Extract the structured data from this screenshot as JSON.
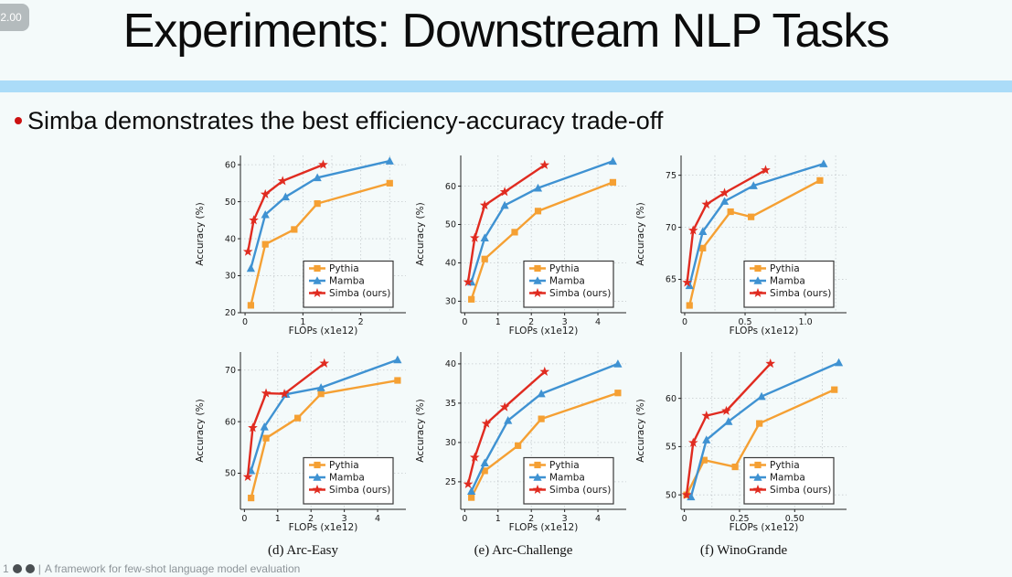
{
  "overlay": {
    "badge": "2.00"
  },
  "slide": {
    "title": "Experiments: Downstream NLP Tasks",
    "bullet": "Simba demonstrates the best efficiency-accuracy trade-off",
    "accent_bar_color": "#ABDCF8",
    "background_color": "#F4FAFA",
    "bullet_dot_color": "#CC1111"
  },
  "footer": {
    "count": "1",
    "separator": "|",
    "text": "A framework for few-shot language model evaluation"
  },
  "colors": {
    "pythia": "#F5A033",
    "mamba": "#3F92D2",
    "simba": "#E02B20"
  },
  "chart_data": [
    {
      "id": "top-left",
      "type": "line",
      "caption": "",
      "xlabel": "FLOPs (x1e12)",
      "ylabel": "Accuracy (%)",
      "xlim": [
        -0.08,
        2.78
      ],
      "ylim": [
        20,
        62.5
      ],
      "xticks": [
        0,
        1,
        2
      ],
      "xtick_labels": [
        "0",
        "1",
        "2"
      ],
      "yticks": [
        20,
        30,
        40,
        50,
        60
      ],
      "xgrid": [
        0.5,
        1,
        1.5,
        2,
        2.5
      ],
      "grid": true,
      "legend_position": "lower right",
      "series": [
        {
          "name": "Pythia",
          "color": "#F5A033",
          "marker": "square",
          "points": [
            [
              0.1,
              22
            ],
            [
              0.35,
              38.5
            ],
            [
              0.85,
              42.5
            ],
            [
              1.25,
              49.5
            ],
            [
              2.5,
              55
            ]
          ]
        },
        {
          "name": "Mamba",
          "color": "#3F92D2",
          "marker": "triangle",
          "points": [
            [
              0.1,
              32
            ],
            [
              0.35,
              46.5
            ],
            [
              0.7,
              51.3
            ],
            [
              1.25,
              56.5
            ],
            [
              2.5,
              61
            ]
          ]
        },
        {
          "name": "Simba (ours)",
          "color": "#E02B20",
          "marker": "star",
          "points": [
            [
              0.05,
              36.5
            ],
            [
              0.15,
              45
            ],
            [
              0.35,
              52
            ],
            [
              0.65,
              55.6
            ],
            [
              1.35,
              60
            ]
          ]
        }
      ]
    },
    {
      "id": "top-middle",
      "type": "line",
      "caption": "",
      "xlabel": "FLOPs (x1e12)",
      "ylabel": "Accuracy (%)",
      "xlim": [
        -0.12,
        4.85
      ],
      "ylim": [
        27,
        68
      ],
      "xticks": [
        0,
        1,
        2,
        3,
        4
      ],
      "xtick_labels": [
        "0",
        "1",
        "2",
        "3",
        "4"
      ],
      "yticks": [
        30,
        40,
        50,
        60
      ],
      "xgrid": [
        1,
        2,
        3,
        4
      ],
      "grid": true,
      "legend_position": "lower right",
      "series": [
        {
          "name": "Pythia",
          "color": "#F5A033",
          "marker": "square",
          "points": [
            [
              0.2,
              30.5
            ],
            [
              0.6,
              41
            ],
            [
              1.5,
              48
            ],
            [
              2.2,
              53.5
            ],
            [
              4.45,
              61
            ]
          ]
        },
        {
          "name": "Mamba",
          "color": "#3F92D2",
          "marker": "triangle",
          "points": [
            [
              0.2,
              35
            ],
            [
              0.6,
              46.5
            ],
            [
              1.2,
              55
            ],
            [
              2.2,
              59.5
            ],
            [
              4.45,
              66.5
            ]
          ]
        },
        {
          "name": "Simba (ours)",
          "color": "#E02B20",
          "marker": "star",
          "points": [
            [
              0.1,
              35
            ],
            [
              0.3,
              46.5
            ],
            [
              0.6,
              55
            ],
            [
              1.2,
              58.5
            ],
            [
              2.4,
              65.5
            ]
          ]
        }
      ]
    },
    {
      "id": "top-right",
      "type": "line",
      "caption": "",
      "xlabel": "FLOPs (x1e12)",
      "ylabel": "Accuracy (%)",
      "xlim": [
        -0.03,
        1.34
      ],
      "ylim": [
        61.8,
        76.9
      ],
      "xticks": [
        0,
        0.5,
        1.0
      ],
      "xtick_labels": [
        "0",
        "0.5",
        "1.0"
      ],
      "yticks": [
        65,
        70,
        75
      ],
      "xgrid": [
        0.25,
        0.5,
        0.75,
        1.0,
        1.25
      ],
      "grid": true,
      "legend_position": "lower right",
      "series": [
        {
          "name": "Pythia",
          "color": "#F5A033",
          "marker": "square",
          "points": [
            [
              0.04,
              62.5
            ],
            [
              0.15,
              68
            ],
            [
              0.38,
              71.5
            ],
            [
              0.55,
              71
            ],
            [
              1.12,
              74.5
            ]
          ]
        },
        {
          "name": "Mamba",
          "color": "#3F92D2",
          "marker": "triangle",
          "points": [
            [
              0.04,
              64.4
            ],
            [
              0.15,
              69.6
            ],
            [
              0.33,
              72.5
            ],
            [
              0.57,
              74
            ],
            [
              1.15,
              76.1
            ]
          ]
        },
        {
          "name": "Simba (ours)",
          "color": "#E02B20",
          "marker": "star",
          "points": [
            [
              0.02,
              64.7
            ],
            [
              0.07,
              69.7
            ],
            [
              0.18,
              72.2
            ],
            [
              0.33,
              73.3
            ],
            [
              0.67,
              75.5
            ]
          ]
        }
      ]
    },
    {
      "id": "bottom-left",
      "type": "line",
      "caption": "(d) Arc-Easy",
      "xlabel": "FLOPs (x1e12)",
      "ylabel": "Accuracy (%)",
      "xlim": [
        -0.12,
        4.85
      ],
      "ylim": [
        43,
        73.5
      ],
      "xticks": [
        0,
        1,
        2,
        3,
        4
      ],
      "xtick_labels": [
        "0",
        "1",
        "2",
        "3",
        "4"
      ],
      "yticks": [
        50,
        60,
        70
      ],
      "xgrid": [
        1,
        2,
        3,
        4
      ],
      "grid": true,
      "legend_position": "lower right",
      "series": [
        {
          "name": "Pythia",
          "color": "#F5A033",
          "marker": "square",
          "points": [
            [
              0.2,
              45.2
            ],
            [
              0.65,
              56.8
            ],
            [
              1.6,
              60.7
            ],
            [
              2.3,
              65.4
            ],
            [
              4.6,
              68
            ]
          ]
        },
        {
          "name": "Mamba",
          "color": "#3F92D2",
          "marker": "triangle",
          "points": [
            [
              0.2,
              50.5
            ],
            [
              0.6,
              59
            ],
            [
              1.25,
              65.3
            ],
            [
              2.3,
              66.6
            ],
            [
              4.6,
              72
            ]
          ]
        },
        {
          "name": "Simba (ours)",
          "color": "#E02B20",
          "marker": "star",
          "points": [
            [
              0.1,
              49.3
            ],
            [
              0.25,
              58.8
            ],
            [
              0.65,
              65.5
            ],
            [
              1.2,
              65.4
            ],
            [
              2.4,
              71.3
            ]
          ]
        }
      ]
    },
    {
      "id": "bottom-middle",
      "type": "line",
      "caption": "(e) Arc-Challenge",
      "xlabel": "FLOPs (x1e12)",
      "ylabel": "Accuracy (%)",
      "xlim": [
        -0.12,
        4.85
      ],
      "ylim": [
        21.5,
        41.5
      ],
      "xticks": [
        0,
        1,
        2,
        3,
        4
      ],
      "xtick_labels": [
        "0",
        "1",
        "2",
        "3",
        "4"
      ],
      "yticks": [
        25,
        30,
        35,
        40
      ],
      "xgrid": [
        1,
        2,
        3,
        4
      ],
      "grid": true,
      "legend_position": "lower right",
      "series": [
        {
          "name": "Pythia",
          "color": "#F5A033",
          "marker": "square",
          "points": [
            [
              0.2,
              23
            ],
            [
              0.6,
              26.4
            ],
            [
              1.6,
              29.6
            ],
            [
              2.3,
              33
            ],
            [
              4.6,
              36.3
            ]
          ]
        },
        {
          "name": "Mamba",
          "color": "#3F92D2",
          "marker": "triangle",
          "points": [
            [
              0.2,
              23.8
            ],
            [
              0.6,
              27.4
            ],
            [
              1.3,
              32.8
            ],
            [
              2.3,
              36.2
            ],
            [
              4.6,
              40
            ]
          ]
        },
        {
          "name": "Simba (ours)",
          "color": "#E02B20",
          "marker": "star",
          "points": [
            [
              0.1,
              24.7
            ],
            [
              0.3,
              28.1
            ],
            [
              0.65,
              32.4
            ],
            [
              1.2,
              34.5
            ],
            [
              2.4,
              39
            ]
          ]
        }
      ]
    },
    {
      "id": "bottom-right",
      "type": "line",
      "caption": "(f) WinoGrande",
      "xlabel": "FLOPs (x1e12)",
      "ylabel": "Accuracy (%)",
      "xlim": [
        -0.015,
        0.735
      ],
      "ylim": [
        48.5,
        64.8
      ],
      "xticks": [
        0,
        0.25,
        0.5
      ],
      "xtick_labels": [
        "0",
        "0.25",
        "0.50"
      ],
      "yticks": [
        50,
        55,
        60
      ],
      "xgrid": [
        0.125,
        0.25,
        0.375,
        0.5,
        0.625
      ],
      "grid": true,
      "legend_position": "lower right",
      "series": [
        {
          "name": "Pythia",
          "color": "#F5A033",
          "marker": "square",
          "points": [
            [
              0.01,
              50
            ],
            [
              0.09,
              53.6
            ],
            [
              0.23,
              52.9
            ],
            [
              0.34,
              57.4
            ],
            [
              0.68,
              60.9
            ]
          ]
        },
        {
          "name": "Mamba",
          "color": "#3F92D2",
          "marker": "triangle",
          "points": [
            [
              0.03,
              49.8
            ],
            [
              0.1,
              55.7
            ],
            [
              0.2,
              57.6
            ],
            [
              0.35,
              60.2
            ],
            [
              0.7,
              63.7
            ]
          ]
        },
        {
          "name": "Simba (ours)",
          "color": "#E02B20",
          "marker": "star",
          "points": [
            [
              0.01,
              50
            ],
            [
              0.04,
              55.4
            ],
            [
              0.1,
              58.2
            ],
            [
              0.19,
              58.7
            ],
            [
              0.39,
              63.6
            ]
          ]
        }
      ]
    }
  ]
}
